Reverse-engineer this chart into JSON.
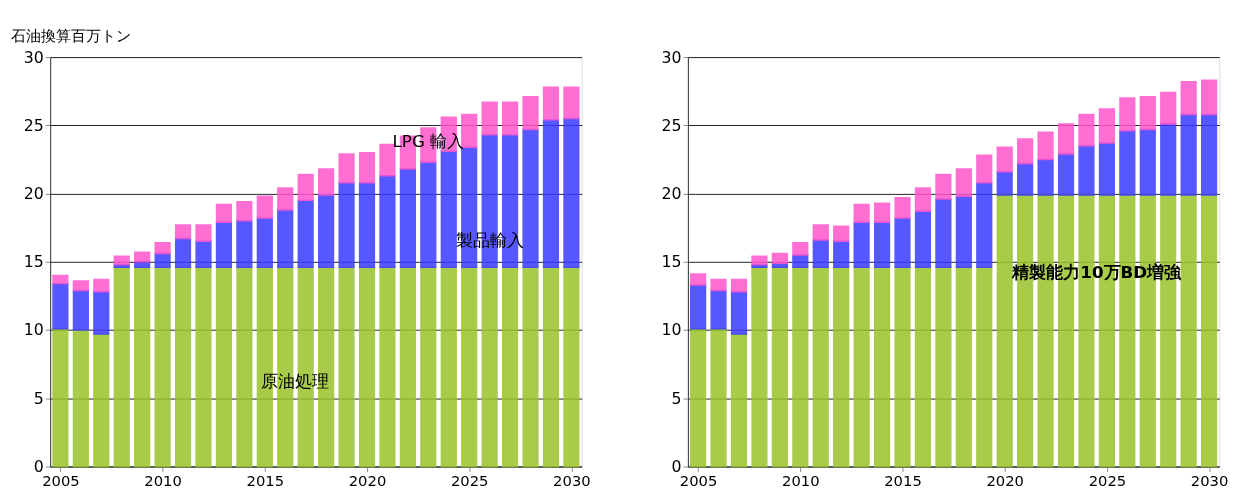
{
  "chart_data": [
    {
      "type": "bar",
      "stacked": true,
      "ylabel": "石油換算百万トン",
      "categories": [
        "2005",
        null,
        null,
        null,
        null,
        "2010",
        null,
        null,
        null,
        null,
        "2015",
        null,
        null,
        null,
        null,
        "2020",
        null,
        null,
        null,
        null,
        "2025",
        null,
        null,
        null,
        null,
        "2030"
      ],
      "ylim": [
        0,
        30
      ],
      "yticks": [
        0,
        5,
        10,
        15,
        20,
        25,
        30
      ],
      "grid": "y",
      "series": [
        {
          "name": "原油処理",
          "color": "#9ac42a",
          "values": [
            10.1,
            10.0,
            9.7,
            14.6,
            14.6,
            14.6,
            14.6,
            14.6,
            14.6,
            14.6,
            14.6,
            14.6,
            14.6,
            14.6,
            14.6,
            14.6,
            14.6,
            14.6,
            14.6,
            14.6,
            14.6,
            14.6,
            14.6,
            14.6,
            14.6,
            14.6
          ]
        },
        {
          "name": "製品輸入",
          "color": "#3a3aff",
          "values": [
            3.3,
            2.9,
            3.1,
            0.2,
            0.4,
            1.0,
            2.1,
            1.9,
            3.3,
            3.4,
            3.6,
            4.2,
            4.9,
            5.3,
            6.2,
            6.2,
            6.7,
            7.2,
            7.7,
            8.5,
            8.8,
            9.7,
            9.7,
            10.1,
            10.8,
            10.9
          ]
        },
        {
          "name": "LPG 輸入",
          "color": "#ff55cc",
          "values": [
            0.6,
            0.7,
            0.9,
            0.6,
            0.7,
            0.8,
            1.0,
            1.2,
            1.3,
            1.4,
            1.6,
            1.6,
            1.9,
            1.9,
            2.1,
            2.2,
            2.3,
            2.4,
            2.5,
            2.5,
            2.4,
            2.4,
            2.4,
            2.4,
            2.4,
            2.3
          ]
        }
      ]
    },
    {
      "type": "bar",
      "stacked": true,
      "categories": [
        "2005",
        null,
        null,
        null,
        null,
        "2010",
        null,
        null,
        null,
        null,
        "2015",
        null,
        null,
        null,
        null,
        "2020",
        null,
        null,
        null,
        null,
        "2025",
        null,
        null,
        null,
        null,
        "2030"
      ],
      "ylim": [
        0,
        30
      ],
      "yticks": [
        0,
        5,
        10,
        15,
        20,
        25,
        30
      ],
      "grid": "y",
      "annotations": [
        "精製能力10万BD増強"
      ],
      "series": [
        {
          "color": "#9ac42a",
          "values": [
            10.1,
            10.1,
            9.7,
            14.6,
            14.6,
            14.6,
            14.6,
            14.6,
            14.6,
            14.6,
            14.6,
            14.6,
            14.6,
            14.6,
            14.6,
            19.9,
            19.9,
            19.9,
            19.9,
            19.9,
            19.9,
            19.9,
            19.9,
            19.9,
            19.9,
            19.9
          ]
        },
        {
          "color": "#3a3aff",
          "values": [
            3.2,
            2.8,
            3.1,
            0.2,
            0.3,
            0.9,
            2.0,
            1.9,
            3.3,
            3.3,
            3.6,
            4.1,
            5.0,
            5.2,
            6.2,
            1.7,
            2.3,
            2.6,
            3.0,
            3.6,
            3.8,
            4.7,
            4.8,
            5.2,
            5.9,
            5.9
          ]
        },
        {
          "color": "#ff55cc",
          "values": [
            0.8,
            0.8,
            0.9,
            0.6,
            0.7,
            0.9,
            1.1,
            1.1,
            1.3,
            1.4,
            1.5,
            1.7,
            1.8,
            2.0,
            2.0,
            1.8,
            1.8,
            2.0,
            2.2,
            2.3,
            2.5,
            2.4,
            2.4,
            2.3,
            2.4,
            2.5
          ]
        }
      ]
    }
  ]
}
